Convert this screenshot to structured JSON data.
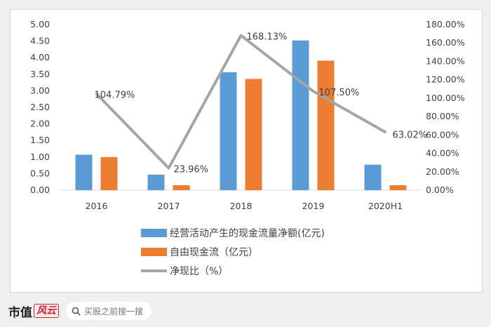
{
  "chart_data": {
    "type": "bar",
    "categories": [
      "2016",
      "2017",
      "2018",
      "2019",
      "2020H1"
    ],
    "series": [
      {
        "name": "经营活动产生的现金流量净额(亿元)",
        "type": "bar",
        "axis": "left",
        "color": "#5b9bd5",
        "values": [
          1.07,
          0.47,
          3.56,
          4.52,
          0.77
        ]
      },
      {
        "name": "自由现金流（亿元）",
        "type": "bar",
        "axis": "left",
        "color": "#ed7d31",
        "values": [
          1.0,
          0.15,
          3.36,
          3.91,
          0.15
        ]
      },
      {
        "name": "净现比（%）",
        "type": "line",
        "axis": "right",
        "color": "#a5a5a5",
        "values": [
          104.79,
          23.96,
          168.13,
          107.5,
          63.02
        ],
        "labels": [
          "104.79%",
          "23.96%",
          "168.13%",
          "107.50%",
          "63.02%"
        ]
      }
    ],
    "y_left": {
      "min": 0,
      "max": 5,
      "step": 0.5,
      "ticks": [
        "0.00",
        "0.50",
        "1.00",
        "1.50",
        "2.00",
        "2.50",
        "3.00",
        "3.50",
        "4.00",
        "4.50",
        "5.00"
      ]
    },
    "y_right": {
      "min": 0,
      "max": 180,
      "step": 20,
      "ticks": [
        "0.00%",
        "20.00%",
        "40.00%",
        "60.00%",
        "80.00%",
        "100.00%",
        "120.00%",
        "140.00%",
        "160.00%",
        "180.00%"
      ]
    },
    "grid": false,
    "legend_position": "bottom"
  },
  "footer": {
    "brand_text": "市值",
    "brand_mark": "风云",
    "search_placeholder": "买股之前搜一搜"
  }
}
